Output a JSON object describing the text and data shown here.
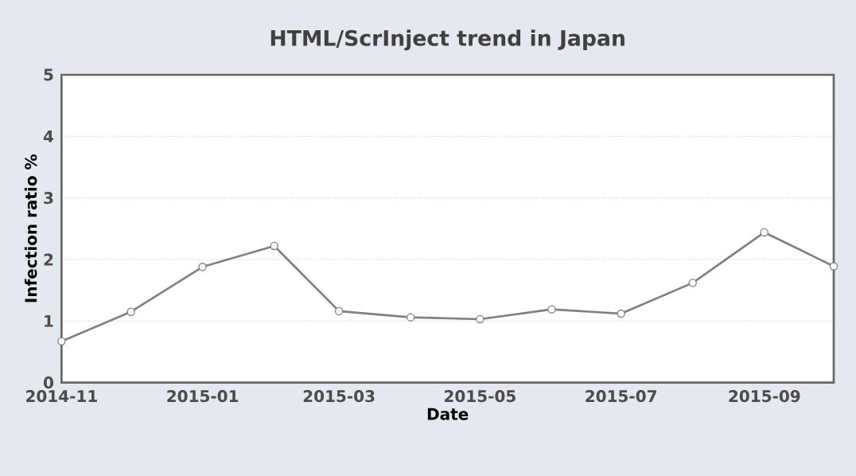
{
  "chart_data": {
    "type": "line",
    "title": "HTML/ScrInject trend in Japan",
    "xlabel": "Date",
    "ylabel": "Infection ratio %",
    "x": [
      "2014-11",
      "2014-12",
      "2015-01",
      "2015-02",
      "2015-03",
      "2015-04",
      "2015-05",
      "2015-06",
      "2015-07",
      "2015-08",
      "2015-09",
      "2015-10"
    ],
    "series": [
      {
        "color": "#808080",
        "values": [
          0.67,
          1.15,
          1.88,
          2.22,
          1.16,
          1.06,
          1.03,
          1.19,
          1.12,
          1.62,
          2.44,
          1.89
        ]
      }
    ],
    "xlim": [
      "2014-11",
      "2015-10"
    ],
    "xticks": [
      "2014-11",
      "2015-01",
      "2015-03",
      "2015-05",
      "2015-07",
      "2015-09"
    ],
    "ylim": [
      0,
      5
    ],
    "yticks": [
      0,
      1,
      2,
      3,
      4,
      5
    ],
    "grid": "y",
    "marker": "circle",
    "line_style": "solid"
  }
}
